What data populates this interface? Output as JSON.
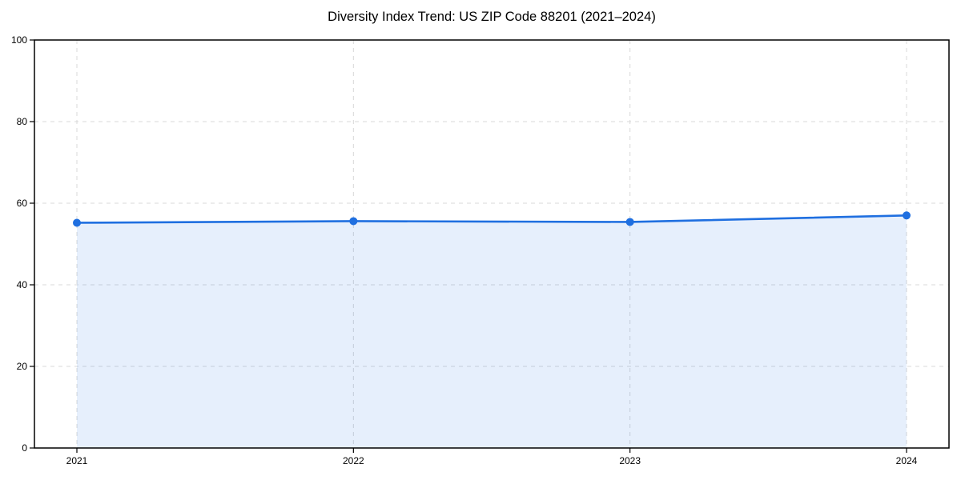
{
  "chart_data": {
    "type": "area",
    "title": "Diversity Index Trend: US ZIP Code 88201 (2021–2024)",
    "series_name": "Diversity Index",
    "x": [
      "2021",
      "2022",
      "2023",
      "2024"
    ],
    "values": [
      55.2,
      55.6,
      55.4,
      57.0
    ],
    "xlabel": "",
    "ylabel": "",
    "ylim": [
      0,
      100
    ],
    "yticks": [
      0,
      20,
      40,
      60,
      80,
      100
    ],
    "xticks": [
      "2021",
      "2022",
      "2023",
      "2024"
    ],
    "grid": true,
    "grid_style": "dashed",
    "legend": "none",
    "colors": {
      "line": "#1f6fe0",
      "marker": "#1f6fe0",
      "fill": "rgba(31,111,224,0.11)",
      "gridline": "#d9d9d9",
      "spine": "#000000",
      "tick_text": "#000000",
      "background": "#ffffff"
    }
  }
}
